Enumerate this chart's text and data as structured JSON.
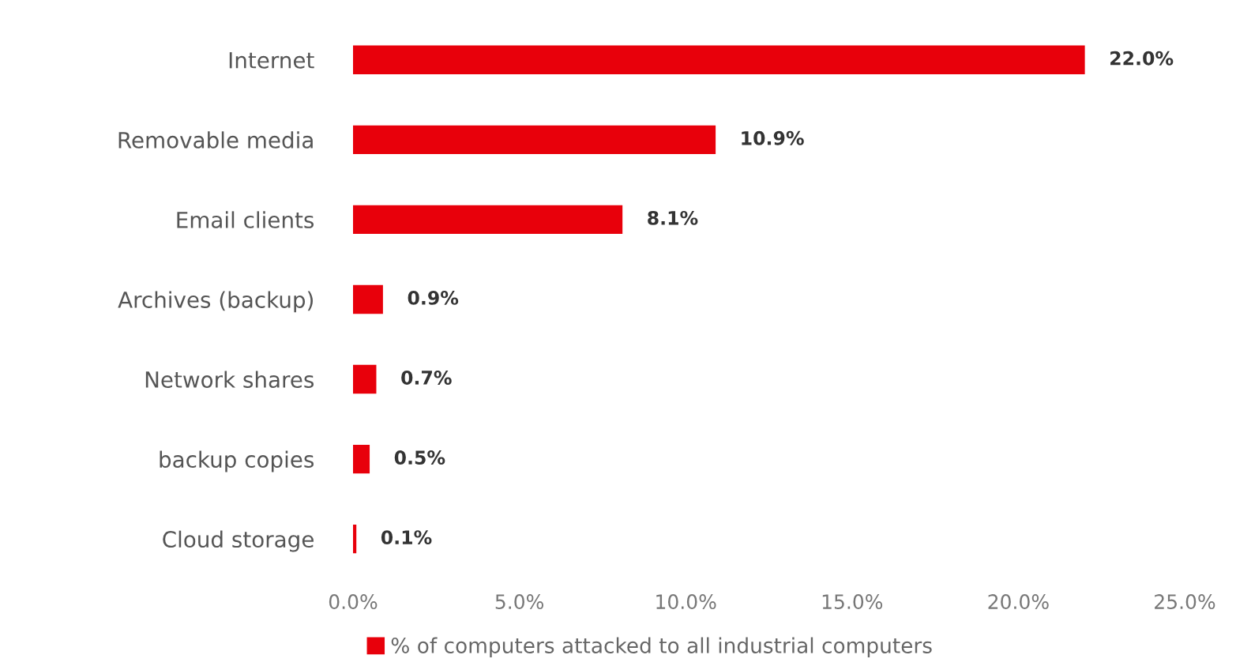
{
  "chart_data": {
    "type": "bar",
    "orientation": "horizontal",
    "categories": [
      "Internet",
      "Removable media",
      "Email clients",
      "Archives (backup)",
      "Network shares",
      "backup copies",
      "Cloud storage"
    ],
    "series": [
      {
        "name": "% of computers attacked to all industrial computers",
        "color": "#e8000b",
        "values": [
          22.0,
          10.9,
          8.1,
          0.9,
          0.7,
          0.5,
          0.1
        ],
        "value_labels": [
          "22.0%",
          "10.9%",
          "8.1%",
          "0.9%",
          "0.7%",
          "0.5%",
          "0.1%"
        ]
      }
    ],
    "xlim": [
      0,
      25
    ],
    "xticks": [
      {
        "value": 0,
        "label": "0.0%"
      },
      {
        "value": 5,
        "label": "5.0%"
      },
      {
        "value": 10,
        "label": "10.0%"
      },
      {
        "value": 15,
        "label": "15.0%"
      },
      {
        "value": 20,
        "label": "20.0%"
      },
      {
        "value": 25,
        "label": "25.0%"
      }
    ],
    "grid": false,
    "legend": "bottom"
  }
}
